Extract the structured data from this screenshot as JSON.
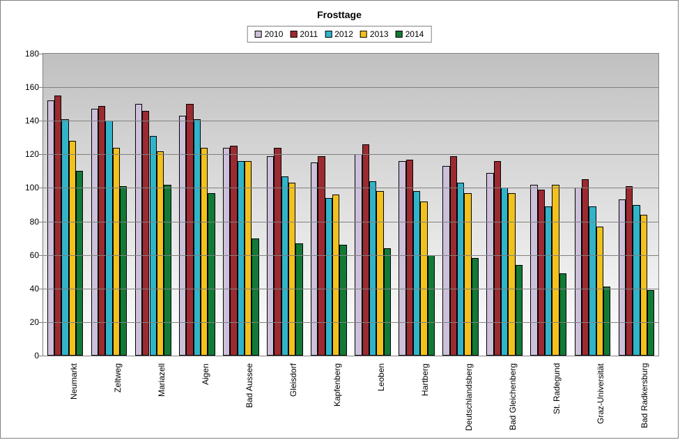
{
  "chart": {
    "type": "bar",
    "title": "Frosttage",
    "title_fontsize": 14,
    "background_color": "#ffffff",
    "border_color": "#808080",
    "plot_bg_gradient_top": "#c0c0c0",
    "plot_bg_gradient_bottom": "#ffffff",
    "grid_color": "#808080",
    "label_fontsize": 12,
    "ylim": [
      0,
      180
    ],
    "ytick_step": 20,
    "categories": [
      "Neumarkt",
      "Zeltweg",
      "Mariazell",
      "Aigen",
      "Bad Aussee",
      "Gleisdorf",
      "Kapfenberg",
      "Leoben",
      "Hartberg",
      "Deutschlandsberg",
      "Bad Gleichenberg",
      "St. Radegund",
      "Graz-Universität",
      "Bad Radkersburg"
    ],
    "series": [
      {
        "name": "2010",
        "color": "#ccc0da",
        "values": [
          152,
          147,
          150,
          143,
          124,
          119,
          115,
          120,
          116,
          113,
          109,
          102,
          100,
          93
        ]
      },
      {
        "name": "2011",
        "color": "#9b2b31",
        "values": [
          155,
          149,
          146,
          150,
          125,
          124,
          119,
          126,
          117,
          119,
          116,
          99,
          105,
          101
        ]
      },
      {
        "name": "2012",
        "color": "#31b4ca",
        "values": [
          141,
          140,
          131,
          141,
          116,
          107,
          94,
          104,
          98,
          103,
          100,
          89,
          89,
          90
        ]
      },
      {
        "name": "2013",
        "color": "#f2c11e",
        "values": [
          128,
          124,
          122,
          124,
          116,
          103,
          96,
          98,
          92,
          97,
          97,
          102,
          77,
          84
        ]
      },
      {
        "name": "2014",
        "color": "#127a36",
        "values": [
          110,
          101,
          102,
          97,
          70,
          67,
          66,
          64,
          60,
          58,
          54,
          49,
          41,
          39
        ]
      }
    ],
    "bar_border_color": "#000000",
    "legend_border_color": "#808080"
  }
}
